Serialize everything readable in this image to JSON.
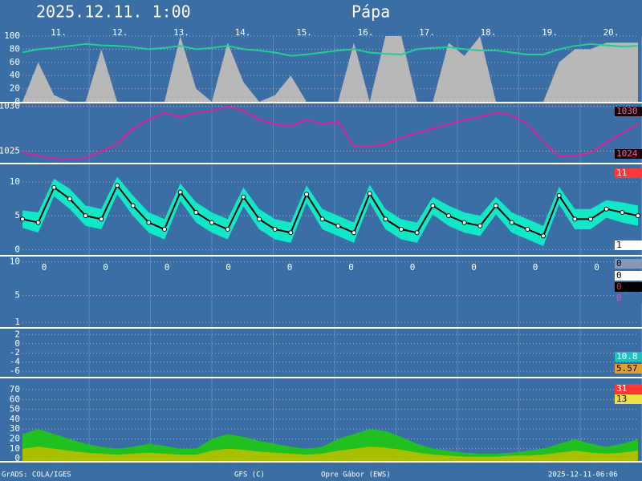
{
  "header": {
    "title": "2025.12.11. 1:00",
    "place": "Pápa",
    "days": [
      "11.",
      "12.",
      "13.",
      "14.",
      "15.",
      "16.",
      "17.",
      "18.",
      "19.",
      "20."
    ]
  },
  "chart_data": [
    {
      "type": "line",
      "ylim": [
        0,
        100
      ],
      "yticks": [
        0,
        20,
        40,
        60,
        80,
        100
      ],
      "grid": true,
      "series": [
        {
          "style": "area",
          "color": "#b8b8b8",
          "values": [
            0,
            60,
            10,
            0,
            0,
            80,
            0,
            0,
            0,
            0,
            100,
            20,
            0,
            90,
            30,
            0,
            10,
            40,
            0,
            0,
            0,
            90,
            0,
            100,
            100,
            0,
            0,
            90,
            70,
            100,
            0,
            0,
            0,
            0,
            60,
            80,
            80,
            90,
            90,
            90
          ]
        },
        {
          "style": "line",
          "color": "#20d090",
          "values": [
            75,
            80,
            82,
            85,
            88,
            86,
            85,
            83,
            80,
            82,
            85,
            80,
            82,
            85,
            80,
            78,
            75,
            70,
            72,
            75,
            78,
            80,
            75,
            73,
            72,
            80,
            82,
            83,
            80,
            78,
            78,
            75,
            72,
            72,
            80,
            85,
            88,
            86,
            84,
            85
          ]
        }
      ],
      "right_labels": []
    },
    {
      "type": "line",
      "ylim": [
        1023.7,
        1030.4
      ],
      "yticks": [
        1025,
        1030
      ],
      "grid": true,
      "series": [
        {
          "style": "line",
          "color": "#e020a0",
          "values": [
            1024.8,
            1024.5,
            1024.2,
            1024.1,
            1024.2,
            1025,
            1025.8,
            1027.5,
            1028.5,
            1029.3,
            1028.8,
            1029.3,
            1029.5,
            1030.0,
            1029.5,
            1028.5,
            1028.0,
            1027.8,
            1028.5,
            1028.0,
            1028.3,
            1025.5,
            1025.5,
            1025.8,
            1026.5,
            1027.0,
            1027.5,
            1028.0,
            1028.5,
            1028.8,
            1029.3,
            1029.0,
            1028.0,
            1026.0,
            1024.5,
            1024.5,
            1024.8,
            1026.0,
            1027.0,
            1028.0
          ]
        }
      ],
      "right_labels": [
        {
          "value": 1030,
          "color": "#180010",
          "text_color": "#ff6090"
        },
        {
          "value": 1024,
          "color": "#180010",
          "text_color": "#ff6090"
        }
      ]
    },
    {
      "type": "line",
      "ylim": [
        -0.8,
        12.5
      ],
      "yticks": [
        0,
        5,
        10
      ],
      "grid": true,
      "series": [
        {
          "style": "band",
          "color": "#10e8c8",
          "values": [
            5.8,
            5.5,
            10.5,
            9,
            6.5,
            6,
            10.8,
            8,
            5.5,
            4.5,
            9.8,
            7,
            5.5,
            4.5,
            9.2,
            6,
            4.5,
            4,
            9.5,
            6,
            5,
            4,
            9.6,
            6,
            4.5,
            4,
            7.8,
            6.5,
            5.5,
            5,
            7.8,
            5.5,
            4.5,
            3.5,
            9.3,
            6,
            6,
            7.3,
            7,
            6.5
          ],
          "low": [
            3.2,
            2.5,
            7.9,
            6,
            3.5,
            3,
            8.2,
            5,
            2.5,
            1.5,
            7.2,
            4,
            2.5,
            1.5,
            6.4,
            3,
            1.5,
            1,
            6.9,
            3,
            2,
            1,
            7,
            3,
            1.5,
            1,
            5.2,
            3.5,
            2.5,
            2,
            5.2,
            2.5,
            1.5,
            0.5,
            6.7,
            3,
            3,
            4.7,
            4,
            3.5
          ]
        },
        {
          "style": "line-points",
          "color": "#000000",
          "values": [
            4.5,
            4,
            9.2,
            7.5,
            5,
            4.5,
            9.5,
            6.5,
            4,
            3,
            8.5,
            5.5,
            4,
            3,
            7.8,
            4.5,
            3,
            2.5,
            8.2,
            4.5,
            3.5,
            2.5,
            8.3,
            4.5,
            3,
            2.5,
            6.5,
            5,
            4,
            3.5,
            6.5,
            4,
            3,
            2,
            8,
            4.5,
            4.5,
            6,
            5.5,
            5
          ]
        }
      ],
      "right_labels": [
        {
          "value": 11,
          "color": "#ff3838",
          "text_color": "#ffffff"
        },
        {
          "value": 1,
          "color": "#ffffff",
          "text_color": "#000000"
        }
      ]
    },
    {
      "type": "text",
      "ylim": [
        0.3,
        10.8
      ],
      "yticks": [
        1,
        5,
        10
      ],
      "grid": true,
      "values": [
        0,
        0,
        0,
        0,
        0,
        0,
        0,
        0,
        0,
        0
      ],
      "right_labels": [
        {
          "value": 0,
          "color": "#8898b8",
          "text_color": "#000000"
        },
        {
          "value": 0,
          "color": "#ffffff",
          "text_color": "#000000"
        },
        {
          "value": 0,
          "color": "#000000",
          "text_color": "#ff2020"
        },
        {
          "value": 0,
          "color": "#3a6ea5",
          "text_color": "#ff40c0"
        }
      ]
    },
    {
      "type": "line",
      "ylim": [
        -7.2,
        3.1
      ],
      "yticks": [
        2,
        0,
        -2,
        -4,
        -6
      ],
      "grid": true,
      "series": [],
      "right_labels": [
        {
          "value": 10.8,
          "color": "#20c0c0",
          "text_color": "#ffffff"
        },
        {
          "value": 5.57,
          "color": "#e0a030",
          "text_color": "#000000"
        }
      ]
    },
    {
      "type": "line",
      "ylim": [
        -2.4,
        80.6
      ],
      "yticks": [
        0,
        10,
        20,
        30,
        40,
        50,
        60,
        70
      ],
      "grid": true,
      "series": [
        {
          "style": "area",
          "color": "#20c020",
          "values": [
            25,
            30,
            25,
            20,
            15,
            12,
            10,
            12,
            15,
            13,
            10,
            10,
            20,
            25,
            22,
            18,
            15,
            12,
            10,
            12,
            20,
            25,
            30,
            28,
            22,
            15,
            10,
            8,
            6,
            5,
            5,
            6,
            8,
            10,
            15,
            20,
            15,
            12,
            15,
            20
          ]
        },
        {
          "style": "area",
          "color": "#a8c000",
          "values": [
            10,
            12,
            10,
            8,
            6,
            5,
            4,
            5,
            6,
            5,
            4,
            4,
            8,
            10,
            9,
            7,
            6,
            5,
            4,
            5,
            8,
            10,
            12,
            11,
            9,
            6,
            4,
            3,
            2,
            2,
            2,
            3,
            3,
            4,
            6,
            8,
            6,
            5,
            6,
            8
          ]
        }
      ],
      "right_labels": [
        {
          "value": 31,
          "color": "#ff3838",
          "text_color": "#ffffff"
        },
        {
          "value": 13,
          "color": "#f0e040",
          "text_color": "#000000"
        }
      ]
    }
  ],
  "footer": [
    "GrADS: COLA/IGES",
    "GFS (C)",
    "Opre Gábor (EWS)",
    "2025-12-11-06:06"
  ]
}
